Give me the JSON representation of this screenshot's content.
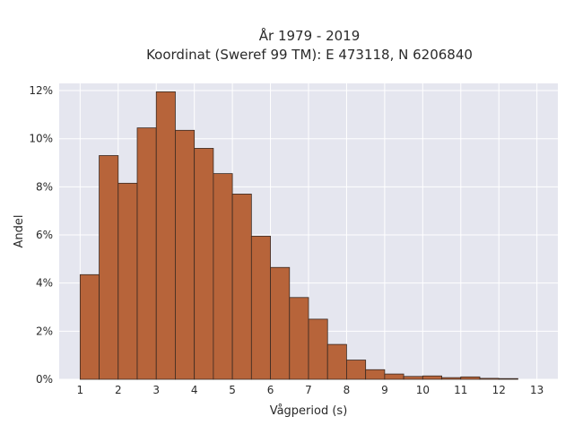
{
  "chart_data": {
    "type": "bar",
    "title_lines": [
      "År 1979 - 2019",
      "Koordinat (Sweref 99 TM): E 473118, N 6206840"
    ],
    "xlabel": "Vågperiod (s)",
    "ylabel": "Andel",
    "bin_width": 0.5,
    "x_bin_starts": [
      1.0,
      1.5,
      2.0,
      2.5,
      3.0,
      3.5,
      4.0,
      4.5,
      5.0,
      5.5,
      6.0,
      6.5,
      7.0,
      7.5,
      8.0,
      8.5,
      9.0,
      9.5,
      10.0,
      10.5,
      11.0,
      11.5,
      12.0
    ],
    "values": [
      4.35,
      9.3,
      8.15,
      10.45,
      11.95,
      10.35,
      9.6,
      8.55,
      7.7,
      5.95,
      4.65,
      3.4,
      2.5,
      1.45,
      0.8,
      0.4,
      0.22,
      0.12,
      0.14,
      0.07,
      0.1,
      0.04,
      0.03
    ],
    "xlim": [
      0.45,
      13.55
    ],
    "ylim": [
      0,
      12.3
    ],
    "xticks": [
      1,
      2,
      3,
      4,
      5,
      6,
      7,
      8,
      9,
      10,
      11,
      12,
      13
    ],
    "yticks": [
      0,
      2,
      4,
      6,
      8,
      10,
      12
    ],
    "ytick_suffix": "%",
    "grid": true,
    "colors": {
      "bar_fill": "#b7643a",
      "bar_edge": "#3a2a22",
      "plot_bg": "#e5e6ef",
      "grid": "#ffffff"
    }
  }
}
